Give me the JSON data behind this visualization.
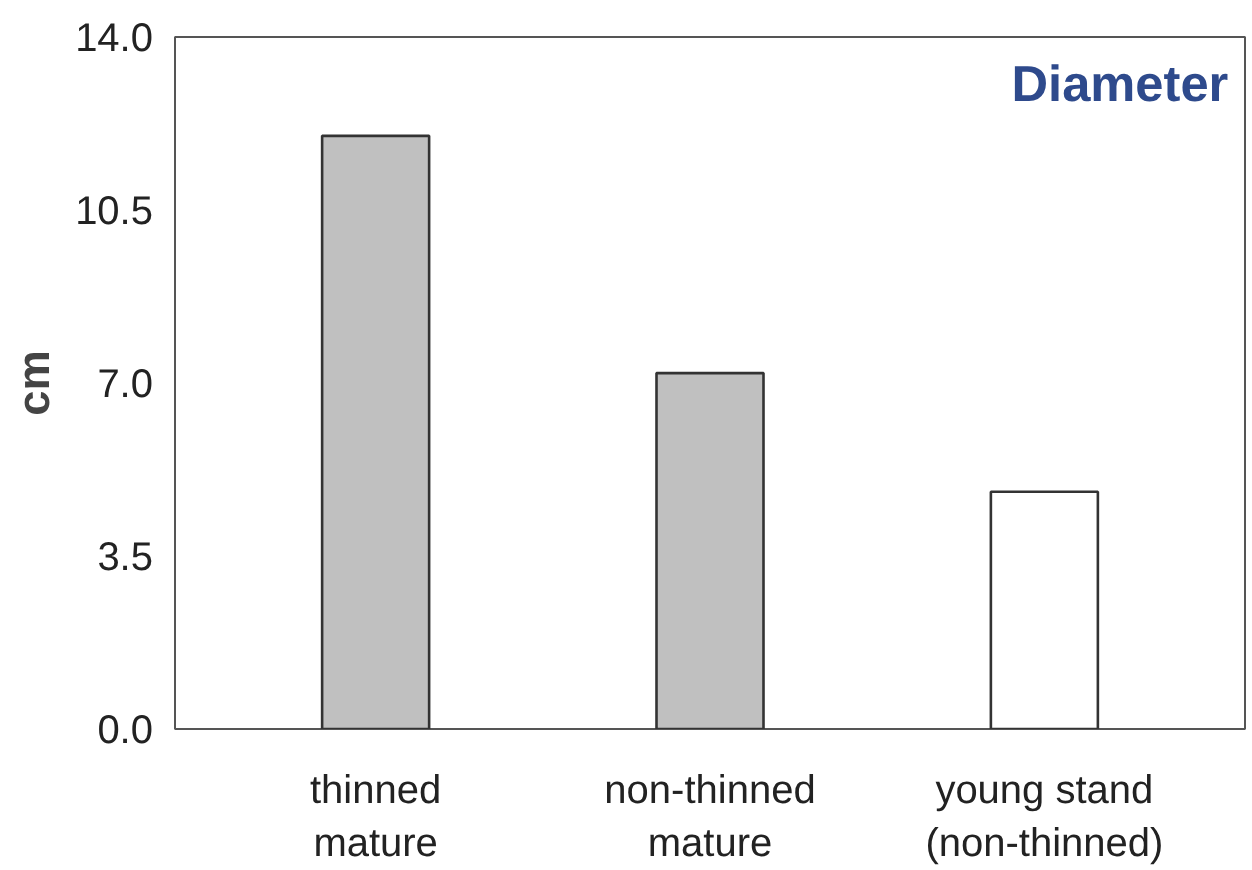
{
  "chart_data": {
    "type": "bar",
    "title": "Diameter",
    "ylabel": "cm",
    "categories": [
      "thinned\nmature",
      "non-thinned\nmature",
      "young stand\n(non-thinned)"
    ],
    "values": [
      12.0,
      7.2,
      4.8
    ],
    "colors": [
      "#c0c0c0",
      "#c0c0c0",
      "#ffffff"
    ],
    "ylim": [
      0,
      14
    ],
    "yticks": [
      {
        "value": 0,
        "label": "0.0"
      },
      {
        "value": 3.5,
        "label": "3.5"
      },
      {
        "value": 7,
        "label": "7.0"
      },
      {
        "value": 10.5,
        "label": "10.5"
      },
      {
        "value": 14,
        "label": "14.0"
      }
    ],
    "grid": false
  }
}
